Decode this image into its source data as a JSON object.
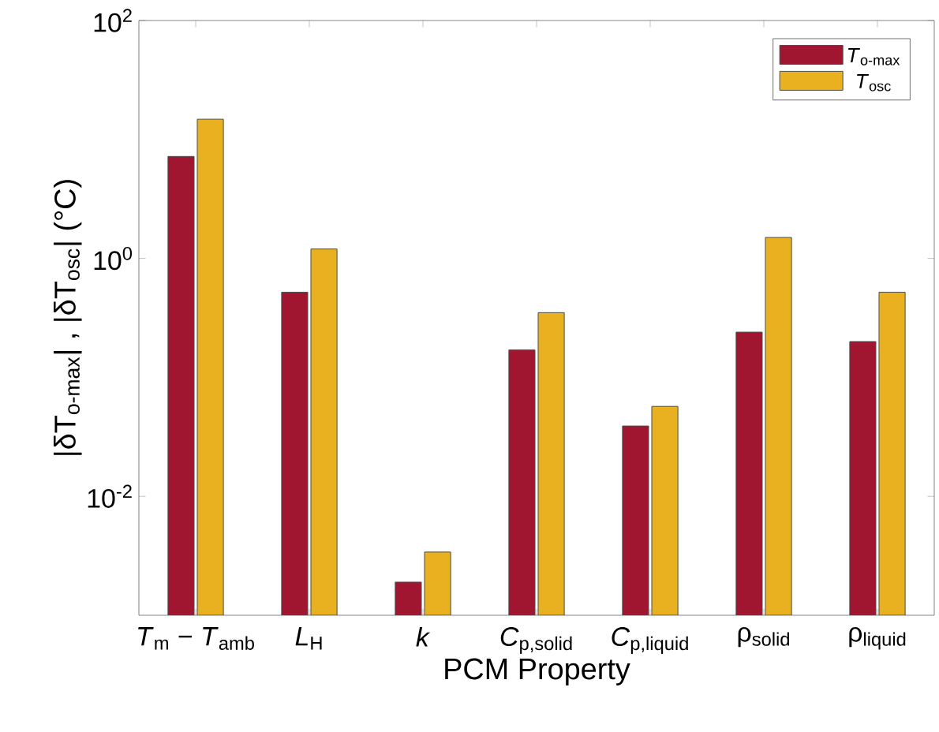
{
  "chart_data": {
    "type": "bar",
    "xlabel": "PCM Property",
    "ylabel": "|δT$_{o-max}$| , |δT$_{osc}$| (°C)",
    "categories": [
      "*T*$_{m}$ − *T*$_{amb}$",
      "*L*$_{H}$",
      "*k*",
      "*C*$_{p,solid}$",
      "*C*$_{p,liquid}$",
      "ρ$_{solid}$",
      "ρ$_{liquid}$"
    ],
    "series": [
      {
        "name": "*T*$_{o-max}$",
        "color": "#a0152f",
        "values": [
          7.2,
          0.52,
          0.0019,
          0.17,
          0.039,
          0.24,
          0.2
        ]
      },
      {
        "name": "*T*$_{osc}$",
        "color": "#e9b020",
        "values": [
          14.8,
          1.2,
          0.0034,
          0.35,
          0.057,
          1.5,
          0.52
        ]
      }
    ],
    "log": "y",
    "ylim": [
      0.001,
      100
    ],
    "yticks": [
      {
        "value": 0.01,
        "label": "10$^{-2}$"
      },
      {
        "value": 1,
        "label": "10$^{0}$"
      },
      {
        "value": 100,
        "label": "10$^{2}$"
      }
    ],
    "legend": "top right"
  }
}
